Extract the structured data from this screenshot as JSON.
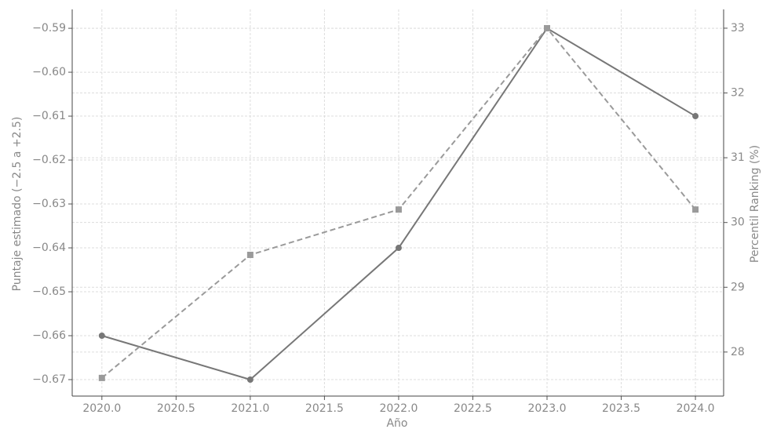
{
  "chart_data": {
    "type": "line",
    "x_label": "Año",
    "y_label": "Puntaje estimado (−2.5 a +2.5)",
    "y2_label": "Percentil Ranking (%)",
    "x": [
      2020,
      2021,
      2022,
      2023,
      2024
    ],
    "xlim": [
      2019.8,
      2024.19
    ],
    "xticks": [
      {
        "value": 2020,
        "label": "2020.0"
      },
      {
        "value": 2020.5,
        "label": "2020.5"
      },
      {
        "value": 2021,
        "label": "2021.0"
      },
      {
        "value": 2021.5,
        "label": "2021.5"
      },
      {
        "value": 2022,
        "label": "2022.0"
      },
      {
        "value": 2022.5,
        "label": "2022.5"
      },
      {
        "value": 2023,
        "label": "2023.0"
      },
      {
        "value": 2023.5,
        "label": "2023.5"
      },
      {
        "value": 2024,
        "label": "2024.0"
      }
    ],
    "ylim": [
      -0.67375,
      -0.5857
    ],
    "yticks": [
      {
        "value": -0.59,
        "label": "−0.59"
      },
      {
        "value": -0.6,
        "label": "−0.60"
      },
      {
        "value": -0.61,
        "label": "−0.61"
      },
      {
        "value": -0.62,
        "label": "−0.62"
      },
      {
        "value": -0.63,
        "label": "−0.63"
      },
      {
        "value": -0.64,
        "label": "−0.64"
      },
      {
        "value": -0.65,
        "label": "−0.65"
      },
      {
        "value": -0.66,
        "label": "−0.66"
      },
      {
        "value": -0.67,
        "label": "−0.67"
      }
    ],
    "y2lim": [
      27.32,
      33.29
    ],
    "y2ticks": [
      28,
      29,
      30,
      31,
      32,
      33
    ],
    "grid": true,
    "series": [
      {
        "color": "#777777",
        "linestyle": "solid",
        "marker": "circle",
        "values": [
          -0.66,
          -0.67,
          -0.64,
          -0.59,
          -0.61
        ]
      },
      {
        "color": "#9a9a9a",
        "linestyle": "dashed",
        "marker": "square",
        "axis": "y2",
        "values": [
          27.6,
          29.5,
          30.2,
          33.0,
          30.2
        ]
      }
    ]
  }
}
